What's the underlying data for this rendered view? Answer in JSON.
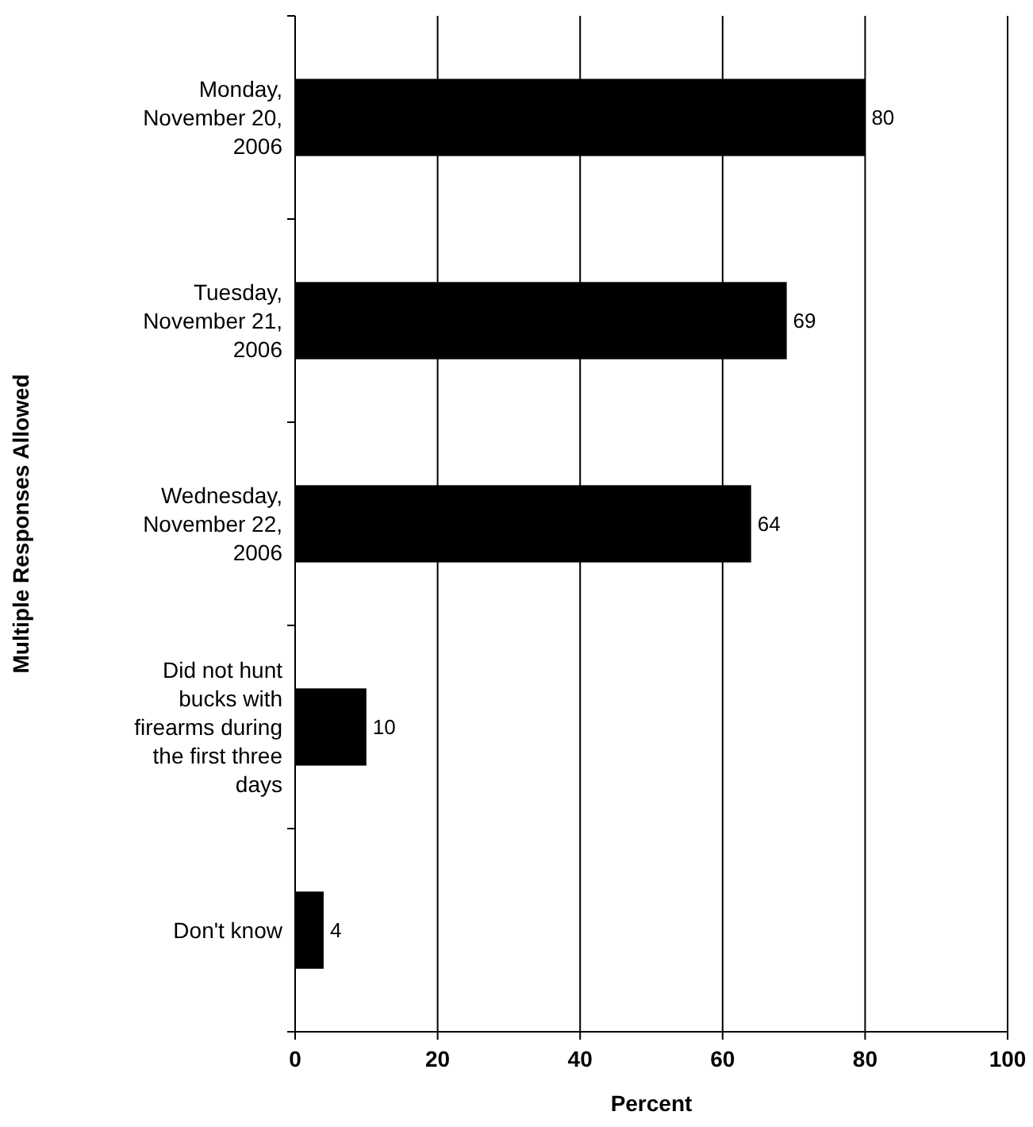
{
  "chart_data": {
    "type": "bar",
    "orientation": "horizontal",
    "categories": [
      "Monday, November 20, 2006",
      "Tuesday, November 21, 2006",
      "Wednesday, November 22, 2006",
      "Did not hunt bucks with firearms during the first three days",
      "Don't know"
    ],
    "values": [
      80,
      69,
      64,
      10,
      4
    ],
    "color": "#000000",
    "xlim": [
      0,
      100
    ],
    "xticks": [
      0,
      20,
      40,
      60,
      80,
      100
    ],
    "grid": "x",
    "data_labels": true,
    "xlabel": "Percent",
    "ylabel": "Multiple Responses Allowed"
  }
}
